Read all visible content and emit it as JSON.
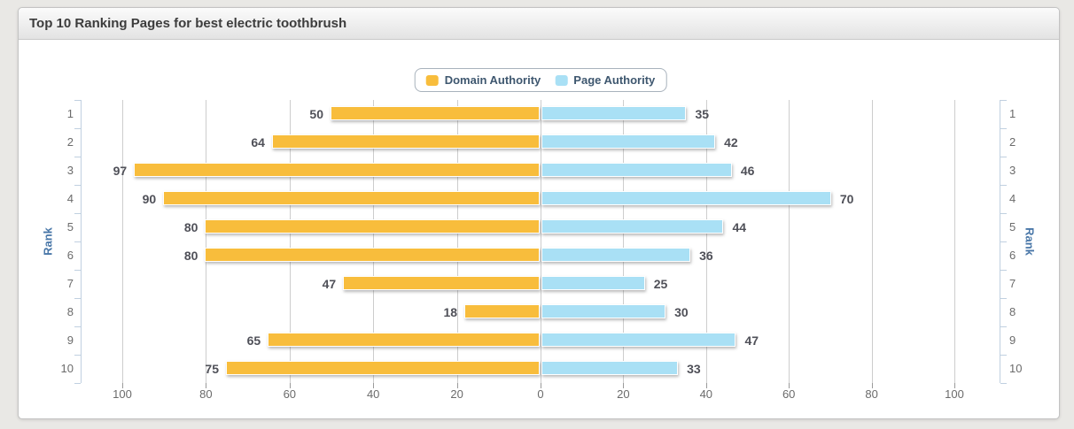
{
  "panel": {
    "title": "Top 10 Ranking Pages for best electric toothbrush"
  },
  "chart_data": {
    "type": "bar",
    "variant": "mirrored-horizontal",
    "title": "Top 10 Ranking Pages for best electric toothbrush",
    "categories": [
      "1",
      "2",
      "3",
      "4",
      "5",
      "6",
      "7",
      "8",
      "9",
      "10"
    ],
    "series": [
      {
        "name": "Domain Authority",
        "side": "left",
        "color": "#f8bd3c",
        "values": [
          50,
          64,
          97,
          90,
          80,
          80,
          47,
          18,
          65,
          75
        ]
      },
      {
        "name": "Page Authority",
        "side": "right",
        "color": "#a9e0f5",
        "values": [
          35,
          42,
          46,
          70,
          44,
          36,
          25,
          30,
          47,
          33
        ]
      }
    ],
    "xlabel": "",
    "ylabel": "Rank",
    "x_axis": {
      "max": 100,
      "ticks_left": [
        100,
        80,
        60,
        40,
        20
      ],
      "center_tick": 0,
      "ticks_right": [
        20,
        40,
        60,
        80,
        100
      ]
    },
    "grid": true,
    "legend_position": "top-center",
    "colors": {
      "axis_title": "#4977a8",
      "legend_text": "#3e576f",
      "value_label": "#4f5058",
      "gridline": "#cdcdcd",
      "rank_axis": "#c0d0e0"
    }
  }
}
